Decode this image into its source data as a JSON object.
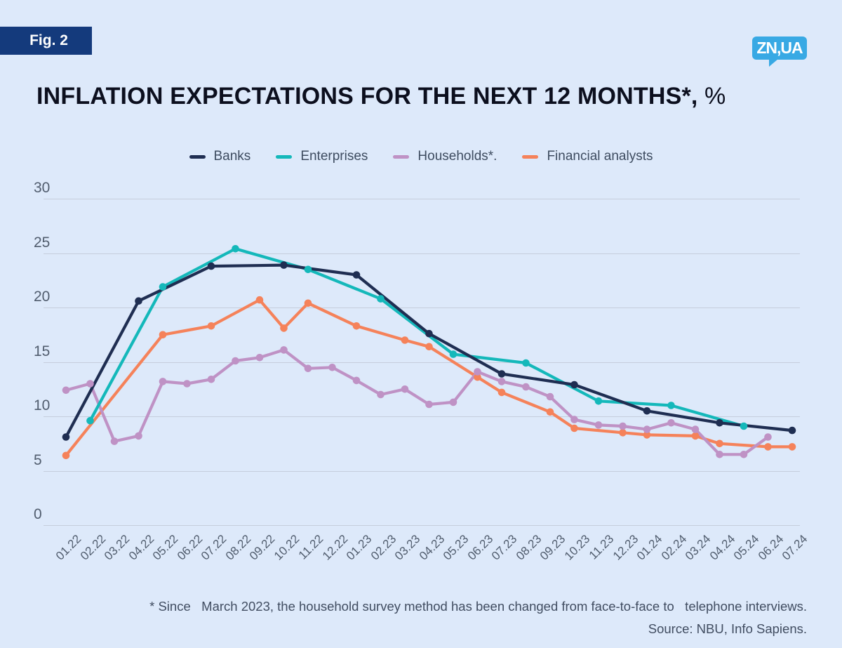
{
  "badge": {
    "label": "Fig. 2"
  },
  "logo": {
    "text": "ZN,UA"
  },
  "title": {
    "main": "INFLATION EXPECTATIONS FOR THE NEXT 12 MONTHS*,",
    "suffix": " %"
  },
  "footnotes": {
    "line1": "* Since   March 2023, the household survey method has been changed from face-to-face to   telephone interviews.",
    "line2": "Source: NBU, Info Sapiens."
  },
  "chart_data": {
    "type": "line",
    "title": "INFLATION EXPECTATIONS FOR THE NEXT 12 MONTHS*, %",
    "legend_position": "top",
    "grid": "horizontal",
    "ylim": [
      0,
      30
    ],
    "y_ticks": [
      30,
      25,
      20,
      15,
      10,
      5,
      0
    ],
    "categories": [
      "01.22",
      "02.22",
      "03.22",
      "04.22",
      "05.22",
      "06.22",
      "07.22",
      "08.22",
      "09.22",
      "10.22",
      "11.22",
      "12.22",
      "01.23",
      "02.23",
      "03.23",
      "04.23",
      "05.23",
      "06.23",
      "07.23",
      "08.23",
      "09.23",
      "10.23",
      "11.23",
      "12.23",
      "01.24",
      "02.24",
      "03.24",
      "04.24",
      "05.24",
      "06.24",
      "07.24"
    ],
    "series": [
      {
        "name": "Banks",
        "color": "#1f2e52",
        "values": [
          8.1,
          null,
          null,
          20.6,
          null,
          null,
          23.8,
          null,
          null,
          23.9,
          null,
          null,
          23.0,
          null,
          null,
          17.6,
          null,
          null,
          13.9,
          null,
          null,
          12.9,
          null,
          null,
          10.5,
          null,
          null,
          9.4,
          null,
          null,
          8.7
        ]
      },
      {
        "name": "Enterprises",
        "color": "#14b8ba",
        "values": [
          null,
          9.6,
          null,
          null,
          21.9,
          null,
          null,
          25.4,
          null,
          null,
          23.5,
          null,
          null,
          20.8,
          null,
          null,
          15.7,
          null,
          null,
          14.9,
          null,
          null,
          11.4,
          null,
          null,
          11.0,
          null,
          null,
          9.1,
          null,
          null
        ]
      },
      {
        "name": "Households*.",
        "color": "#bf92c5",
        "values": [
          12.4,
          13.0,
          7.7,
          8.2,
          13.2,
          13.0,
          13.4,
          15.1,
          15.4,
          16.1,
          14.4,
          14.5,
          13.3,
          12.0,
          12.5,
          11.1,
          11.3,
          14.1,
          13.2,
          12.7,
          11.8,
          9.7,
          9.2,
          9.1,
          8.8,
          9.4,
          8.8,
          6.5,
          6.5,
          8.1,
          null
        ]
      },
      {
        "name": "Financial analysts",
        "color": "#f5825a",
        "values": [
          6.4,
          null,
          null,
          null,
          17.5,
          null,
          18.3,
          null,
          20.7,
          18.1,
          20.4,
          null,
          18.3,
          null,
          17.0,
          16.4,
          null,
          13.6,
          12.2,
          null,
          10.4,
          8.9,
          null,
          8.5,
          8.3,
          null,
          8.2,
          7.5,
          null,
          7.2,
          7.2
        ]
      }
    ]
  }
}
